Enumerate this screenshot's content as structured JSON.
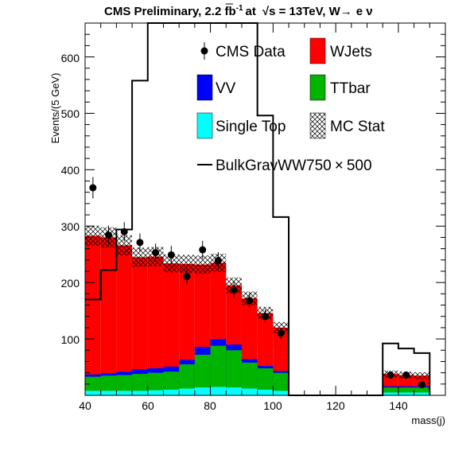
{
  "chart_data": {
    "type": "bar",
    "title": "CMS Preliminary, 2.2 fb",
    "title_sup": "-1",
    "title_at": "at",
    "title_sqrt": "√s = 13TeV, W",
    "title_arrow": "→",
    "title_end": "e  ν",
    "xlabel": "mass(j)",
    "ylabel": "Events/(5 GeV)",
    "xlim": [
      40,
      155
    ],
    "ylim": [
      0,
      660
    ],
    "xticks": [
      "40",
      "60",
      "80",
      "100",
      "120",
      "140"
    ],
    "yticks": [
      "100",
      "200",
      "300",
      "400",
      "500",
      "600"
    ],
    "legend": {
      "data": "CMS Data",
      "wjets": "WJets",
      "vv": "VV",
      "ttbar": "TTbar",
      "singletop": "Single Top",
      "mcstat": "MC Stat",
      "signal": "BulkGravWW750",
      "signal_times": "×",
      "signal_scale": "500"
    },
    "colors": {
      "wjets": "#ff0000",
      "vv": "#0000ff",
      "ttbar": "#00b400",
      "singletop": "#00ffff",
      "signal": "#000000",
      "data": "#000000"
    },
    "bin_edges": [
      40,
      45,
      50,
      55,
      60,
      65,
      70,
      75,
      80,
      85,
      90,
      95,
      100,
      105,
      110,
      115,
      120,
      125,
      130,
      135,
      140,
      145,
      150
    ],
    "stack": {
      "singletop": [
        8,
        8,
        8,
        8,
        9,
        10,
        12,
        14,
        15,
        14,
        12,
        10,
        8,
        0,
        0,
        0,
        0,
        0,
        0,
        5,
        5,
        5
      ],
      "ttbar": [
        33,
        35,
        36,
        38,
        40,
        42,
        55,
        72,
        88,
        80,
        58,
        48,
        40,
        0,
        0,
        0,
        0,
        0,
        0,
        14,
        14,
        14
      ],
      "vv": [
        37,
        39,
        42,
        46,
        48,
        51,
        63,
        86,
        100,
        90,
        64,
        52,
        43,
        0,
        0,
        0,
        0,
        0,
        0,
        16,
        16,
        16
      ],
      "total": [
        283,
        280,
        266,
        245,
        246,
        234,
        233,
        232,
        235,
        195,
        172,
        146,
        120,
        0,
        0,
        0,
        0,
        0,
        0,
        38,
        36,
        35
      ],
      "mcstat": [
        18,
        18,
        18,
        17,
        17,
        16,
        16,
        16,
        16,
        14,
        12,
        11,
        10,
        0,
        0,
        0,
        0,
        0,
        0,
        6,
        6,
        6
      ]
    },
    "signal": [
      170,
      222,
      294,
      558,
      1000,
      1000,
      1000,
      1000,
      1000,
      1000,
      1000,
      496,
      316,
      0,
      0,
      0,
      0,
      0,
      0,
      92,
      83,
      75
    ],
    "data_points": {
      "x": [
        42.5,
        47.5,
        52.5,
        57.5,
        62.5,
        67.5,
        72.5,
        77.5,
        82.5,
        87.5,
        92.5,
        97.5,
        102.5,
        137.5,
        142.5,
        147.5
      ],
      "y": [
        368,
        284,
        290,
        271,
        253,
        249,
        211,
        258,
        239,
        187,
        168,
        140,
        110,
        36,
        36,
        19
      ],
      "err": [
        19,
        17,
        17,
        16,
        16,
        16,
        14,
        16,
        15,
        14,
        13,
        12,
        10,
        6,
        6,
        4
      ]
    }
  }
}
